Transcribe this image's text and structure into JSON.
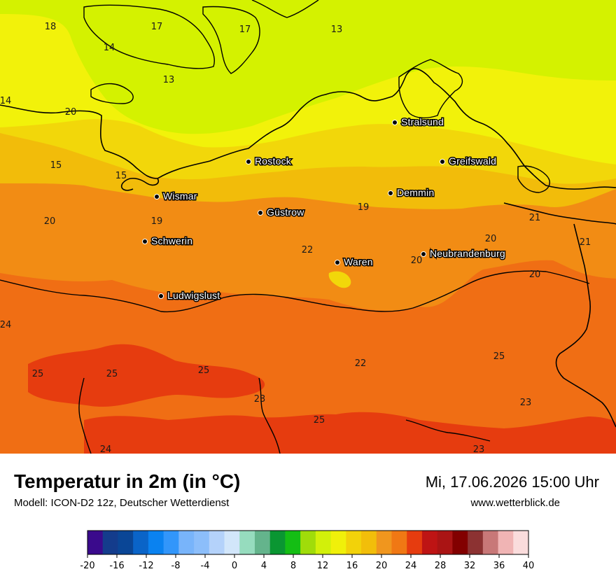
{
  "map": {
    "colors": {
      "c13": "#d4f200",
      "c15": "#f2f20a",
      "c17": "#f2d70a",
      "c19": "#f2bc0a",
      "c21": "#f28c14",
      "c23": "#f06e14",
      "c25": "#e63c0f",
      "coast": "#000000"
    },
    "cities": [
      {
        "name": "Stralsund"
      },
      {
        "name": "Rostock"
      },
      {
        "name": "Greifswald"
      },
      {
        "name": "Wismar"
      },
      {
        "name": "Demmin"
      },
      {
        "name": "Güstrow"
      },
      {
        "name": "Schwerin"
      },
      {
        "name": "Neubrandenburg"
      },
      {
        "name": "Waren"
      },
      {
        "name": "Ludwigslust"
      }
    ],
    "value_labels": [
      "18",
      "17",
      "17",
      "13",
      "14",
      "13",
      "14",
      "20",
      "15",
      "15",
      "20",
      "19",
      "19",
      "22",
      "21",
      "20",
      "21",
      "20",
      "20",
      "24",
      "25",
      "25",
      "25",
      "23",
      "22",
      "25",
      "25",
      "23",
      "24",
      "23"
    ]
  },
  "footer": {
    "title": "Temperatur in 2m (in °C)",
    "model": "Modell: ICON-D2 12z, Deutscher Wetterdienst",
    "datetime": "Mi, 17.06.2026 15:00 Uhr",
    "website": "www.wetterblick.de"
  },
  "legend": {
    "colors": [
      "#3a0a8c",
      "#143c8c",
      "#0a4696",
      "#0a64c8",
      "#0a82f0",
      "#3296fa",
      "#78b4fa",
      "#8cbefa",
      "#b4d2fa",
      "#d2e6fa",
      "#96dcbe",
      "#64b48c",
      "#0a9632",
      "#14be14",
      "#a0dc0a",
      "#d2f00a",
      "#f0f00a",
      "#f2d20a",
      "#f2be0a",
      "#f0961e",
      "#f07814",
      "#e63c0f",
      "#be1414",
      "#aa1414",
      "#820000",
      "#8c3232",
      "#c87878",
      "#f0b4b4",
      "#fadcdc"
    ],
    "ticks": [
      "-20",
      "-16",
      "-12",
      "-8",
      "-4",
      "0",
      "4",
      "8",
      "12",
      "16",
      "20",
      "24",
      "28",
      "32",
      "36",
      "40"
    ]
  }
}
